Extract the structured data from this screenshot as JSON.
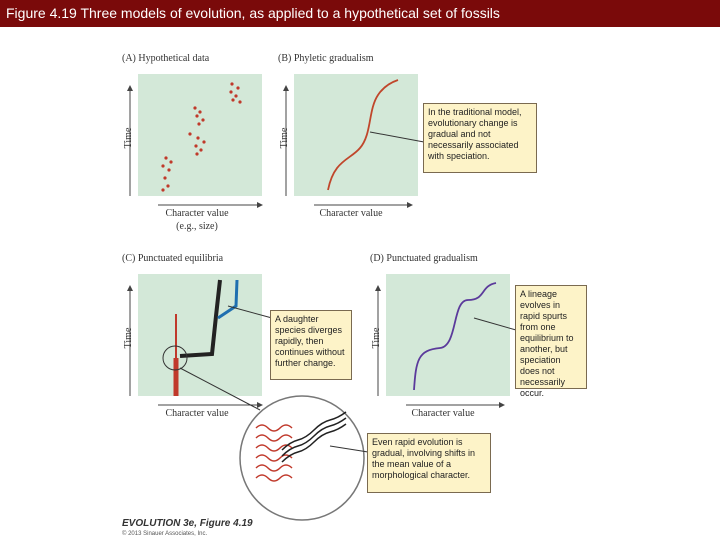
{
  "header": {
    "title": "Figure 4.19  Three models of evolution, as applied to a hypothetical set of fossils"
  },
  "panels": [
    {
      "label": "(A) Hypothetical data",
      "y_axis": "Time",
      "x_axis": "Character value",
      "x_axis_note": "(e.g., size)"
    },
    {
      "label": "(B) Phyletic gradualism",
      "y_axis": "Time",
      "x_axis": "Character value",
      "callout": "In the traditional model, evolutionary change is gradual and not necessarily associated with speciation."
    },
    {
      "label": "(C) Punctuated equilibria",
      "y_axis": "Time",
      "x_axis": "Character value",
      "callout": "A daughter species diverges rapidly, then continues without further change.",
      "inset_callout": "Even rapid evolution is gradual, involving shifts in the mean value of a morphological character."
    },
    {
      "label": "(D) Punctuated gradualism",
      "y_axis": "Time",
      "x_axis": "Character value",
      "callout": "A lineage evolves in rapid spurts from one equilibrium to another, but speciation does not necessarily occur."
    }
  ],
  "footer": {
    "book": "EVOLUTION 3e, Figure 4.19",
    "copyright": "© 2013 Sinauer Associates, Inc."
  }
}
